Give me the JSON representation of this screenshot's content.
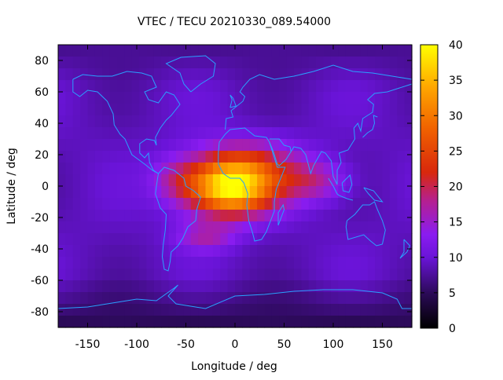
{
  "chart_data": {
    "type": "heatmap",
    "title": "VTEC / TECU 20210330_089.54000",
    "xlabel": "Longitude / deg",
    "ylabel": "Latitude / deg",
    "xlim": [
      -180,
      180
    ],
    "ylim": [
      -90,
      90
    ],
    "x_ticks": [
      -150,
      -100,
      -50,
      0,
      50,
      100,
      150
    ],
    "y_ticks": [
      -80,
      -60,
      -40,
      -20,
      0,
      20,
      40,
      60,
      80
    ],
    "colorbar": {
      "ticks": [
        0,
        5,
        10,
        15,
        20,
        25,
        30,
        35,
        40
      ],
      "range": [
        0,
        40
      ],
      "palette": "black-purple-red-orange-yellow"
    },
    "field_features": {
      "peak": {
        "lon": -5,
        "lat": -2,
        "value": 38
      },
      "background": 9,
      "polar_minimum": 4
    }
  }
}
